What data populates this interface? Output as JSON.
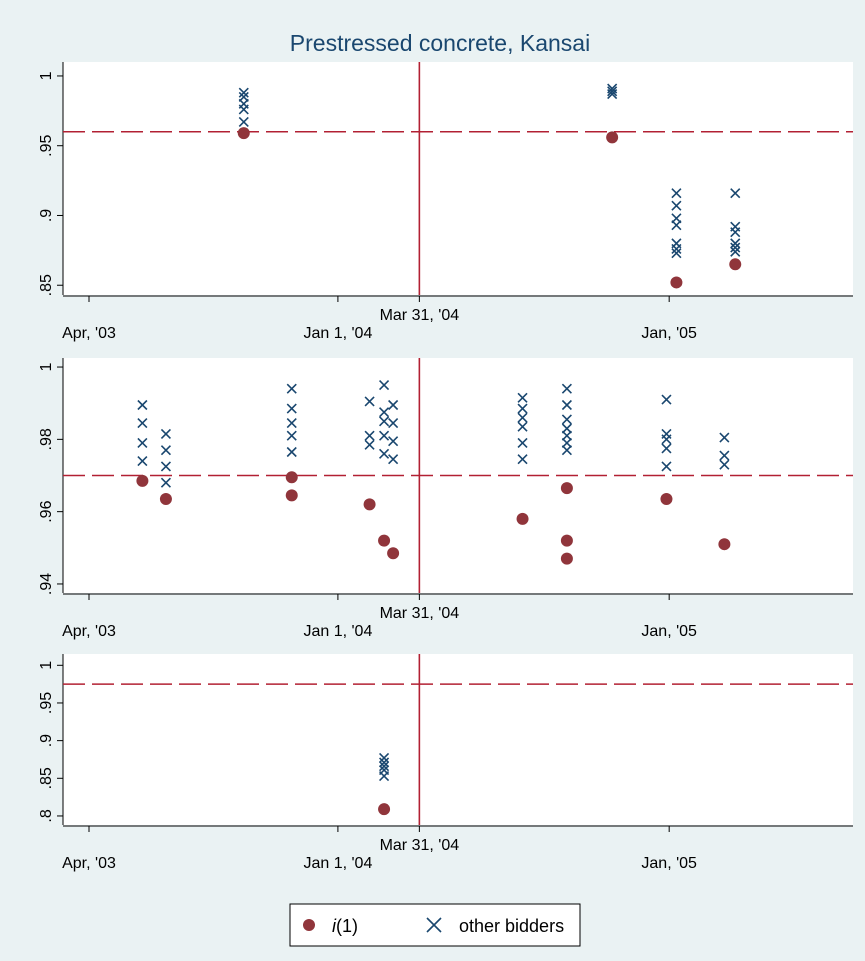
{
  "colors": {
    "background": "#eaf2f3",
    "plot_background": "#ffffff",
    "title": "#1a476f",
    "reference_line": "#b22033",
    "i1_marker": "#90353b",
    "other_marker": "#1a476f"
  },
  "legend": {
    "i1_label": "i(1)",
    "other_label": "other bidders"
  },
  "chart_data": [
    {
      "type": "scatter",
      "title": "Prestressed concrete, Kansai",
      "xlabel": "",
      "ylabel": "",
      "x_ticks": [
        {
          "date": "2003-04-01",
          "label": "Apr, '03"
        },
        {
          "date": "2004-01-01",
          "label": "Jan 1, '04"
        },
        {
          "date": "2005-01-01",
          "label": "Jan, '05"
        }
      ],
      "x_range": [
        "2003-04-01",
        "2005-07-01"
      ],
      "vline": {
        "date": "2004-03-31",
        "label": "Mar 31, '04"
      },
      "hline": 0.96,
      "ylim": [
        0.843,
        1.01
      ],
      "y_ticks": [
        0.85,
        0.9,
        0.95,
        1
      ],
      "y_tick_labels": [
        ".85",
        ".9",
        ".95",
        "1"
      ],
      "series": [
        {
          "name": "i(1)",
          "marker": "circle",
          "points": [
            {
              "x": "2003-09-19",
              "y": 0.959
            },
            {
              "x": "2004-10-30",
              "y": 0.956
            },
            {
              "x": "2005-01-09",
              "y": 0.852
            },
            {
              "x": "2005-03-15",
              "y": 0.865
            }
          ]
        },
        {
          "name": "other bidders",
          "marker": "x",
          "points": [
            {
              "x": "2003-09-19",
              "y": 0.988
            },
            {
              "x": "2003-09-19",
              "y": 0.985
            },
            {
              "x": "2003-09-19",
              "y": 0.98
            },
            {
              "x": "2003-09-19",
              "y": 0.976
            },
            {
              "x": "2003-09-19",
              "y": 0.967
            },
            {
              "x": "2004-10-30",
              "y": 0.991
            },
            {
              "x": "2004-10-30",
              "y": 0.989
            },
            {
              "x": "2004-10-30",
              "y": 0.987
            },
            {
              "x": "2005-01-09",
              "y": 0.916
            },
            {
              "x": "2005-01-09",
              "y": 0.907
            },
            {
              "x": "2005-01-09",
              "y": 0.898
            },
            {
              "x": "2005-01-09",
              "y": 0.893
            },
            {
              "x": "2005-01-09",
              "y": 0.88
            },
            {
              "x": "2005-01-09",
              "y": 0.876
            },
            {
              "x": "2005-01-09",
              "y": 0.873
            },
            {
              "x": "2005-03-15",
              "y": 0.916
            },
            {
              "x": "2005-03-15",
              "y": 0.892
            },
            {
              "x": "2005-03-15",
              "y": 0.888
            },
            {
              "x": "2005-03-15",
              "y": 0.88
            },
            {
              "x": "2005-03-15",
              "y": 0.877
            },
            {
              "x": "2005-03-15",
              "y": 0.874
            }
          ]
        }
      ]
    },
    {
      "type": "scatter",
      "title": "",
      "xlabel": "",
      "ylabel": "",
      "x_ticks": [
        {
          "date": "2003-04-01",
          "label": "Apr, '03"
        },
        {
          "date": "2004-01-01",
          "label": "Jan 1, '04"
        },
        {
          "date": "2005-01-01",
          "label": "Jan, '05"
        }
      ],
      "x_range": [
        "2003-04-01",
        "2005-07-01"
      ],
      "vline": {
        "date": "2004-03-31",
        "label": "Mar 31, '04"
      },
      "hline": 0.97,
      "ylim": [
        0.9375,
        1.0025
      ],
      "y_ticks": [
        0.94,
        0.96,
        0.98,
        1
      ],
      "y_tick_labels": [
        ".94",
        ".96",
        ".98",
        "1"
      ],
      "series": [
        {
          "name": "i(1)",
          "marker": "circle",
          "points": [
            {
              "x": "2003-05-30",
              "y": 0.9685
            },
            {
              "x": "2003-06-25",
              "y": 0.9635
            },
            {
              "x": "2003-11-11",
              "y": 0.9695
            },
            {
              "x": "2003-11-11",
              "y": 0.9645
            },
            {
              "x": "2004-02-05",
              "y": 0.962
            },
            {
              "x": "2004-02-21",
              "y": 0.952
            },
            {
              "x": "2004-03-02",
              "y": 0.9485
            },
            {
              "x": "2004-07-23",
              "y": 0.958
            },
            {
              "x": "2004-09-10",
              "y": 0.9665
            },
            {
              "x": "2004-09-10",
              "y": 0.952
            },
            {
              "x": "2004-09-10",
              "y": 0.947
            },
            {
              "x": "2004-12-29",
              "y": 0.9635
            },
            {
              "x": "2005-03-03",
              "y": 0.951
            }
          ]
        },
        {
          "name": "other bidders",
          "marker": "x",
          "points": [
            {
              "x": "2003-05-30",
              "y": 0.9895
            },
            {
              "x": "2003-05-30",
              "y": 0.9845
            },
            {
              "x": "2003-05-30",
              "y": 0.979
            },
            {
              "x": "2003-05-30",
              "y": 0.974
            },
            {
              "x": "2003-06-25",
              "y": 0.9815
            },
            {
              "x": "2003-06-25",
              "y": 0.977
            },
            {
              "x": "2003-06-25",
              "y": 0.9725
            },
            {
              "x": "2003-06-25",
              "y": 0.968
            },
            {
              "x": "2003-11-11",
              "y": 0.994
            },
            {
              "x": "2003-11-11",
              "y": 0.9885
            },
            {
              "x": "2003-11-11",
              "y": 0.9845
            },
            {
              "x": "2003-11-11",
              "y": 0.981
            },
            {
              "x": "2003-11-11",
              "y": 0.9765
            },
            {
              "x": "2004-02-05",
              "y": 0.9905
            },
            {
              "x": "2004-02-05",
              "y": 0.981
            },
            {
              "x": "2004-02-05",
              "y": 0.9785
            },
            {
              "x": "2004-02-21",
              "y": 0.995
            },
            {
              "x": "2004-02-21",
              "y": 0.9875
            },
            {
              "x": "2004-02-21",
              "y": 0.985
            },
            {
              "x": "2004-02-21",
              "y": 0.981
            },
            {
              "x": "2004-02-21",
              "y": 0.976
            },
            {
              "x": "2004-03-02",
              "y": 0.9895
            },
            {
              "x": "2004-03-02",
              "y": 0.9845
            },
            {
              "x": "2004-03-02",
              "y": 0.9795
            },
            {
              "x": "2004-03-02",
              "y": 0.9745
            },
            {
              "x": "2004-07-23",
              "y": 0.9915
            },
            {
              "x": "2004-07-23",
              "y": 0.9885
            },
            {
              "x": "2004-07-23",
              "y": 0.986
            },
            {
              "x": "2004-07-23",
              "y": 0.9835
            },
            {
              "x": "2004-07-23",
              "y": 0.979
            },
            {
              "x": "2004-07-23",
              "y": 0.9745
            },
            {
              "x": "2004-09-10",
              "y": 0.994
            },
            {
              "x": "2004-09-10",
              "y": 0.9895
            },
            {
              "x": "2004-09-10",
              "y": 0.9855
            },
            {
              "x": "2004-09-10",
              "y": 0.983
            },
            {
              "x": "2004-09-10",
              "y": 0.981
            },
            {
              "x": "2004-09-10",
              "y": 0.979
            },
            {
              "x": "2004-09-10",
              "y": 0.977
            },
            {
              "x": "2004-12-29",
              "y": 0.991
            },
            {
              "x": "2004-12-29",
              "y": 0.9815
            },
            {
              "x": "2004-12-29",
              "y": 0.98
            },
            {
              "x": "2004-12-29",
              "y": 0.9775
            },
            {
              "x": "2004-12-29",
              "y": 0.9725
            },
            {
              "x": "2005-03-03",
              "y": 0.9805
            },
            {
              "x": "2005-03-03",
              "y": 0.9755
            },
            {
              "x": "2005-03-03",
              "y": 0.973
            }
          ]
        }
      ]
    },
    {
      "type": "scatter",
      "title": "",
      "xlabel": "",
      "ylabel": "",
      "x_ticks": [
        {
          "date": "2003-04-01",
          "label": "Apr, '03"
        },
        {
          "date": "2004-01-01",
          "label": "Jan 1, '04"
        },
        {
          "date": "2005-01-01",
          "label": "Jan, '05"
        }
      ],
      "x_range": [
        "2003-04-01",
        "2005-07-01"
      ],
      "vline": {
        "date": "2004-03-31",
        "label": "Mar 31, '04"
      },
      "hline": 0.975,
      "ylim": [
        0.788,
        1.015
      ],
      "y_ticks": [
        0.8,
        0.85,
        0.9,
        0.95,
        1
      ],
      "y_tick_labels": [
        ".8",
        ".85",
        ".9",
        ".95",
        "1"
      ],
      "series": [
        {
          "name": "i(1)",
          "marker": "circle",
          "points": [
            {
              "x": "2004-02-21",
              "y": 0.809
            }
          ]
        },
        {
          "name": "other bidders",
          "marker": "x",
          "points": [
            {
              "x": "2004-02-21",
              "y": 0.877
            },
            {
              "x": "2004-02-21",
              "y": 0.871
            },
            {
              "x": "2004-02-21",
              "y": 0.866
            },
            {
              "x": "2004-02-21",
              "y": 0.861
            },
            {
              "x": "2004-02-21",
              "y": 0.853
            }
          ]
        }
      ]
    }
  ]
}
